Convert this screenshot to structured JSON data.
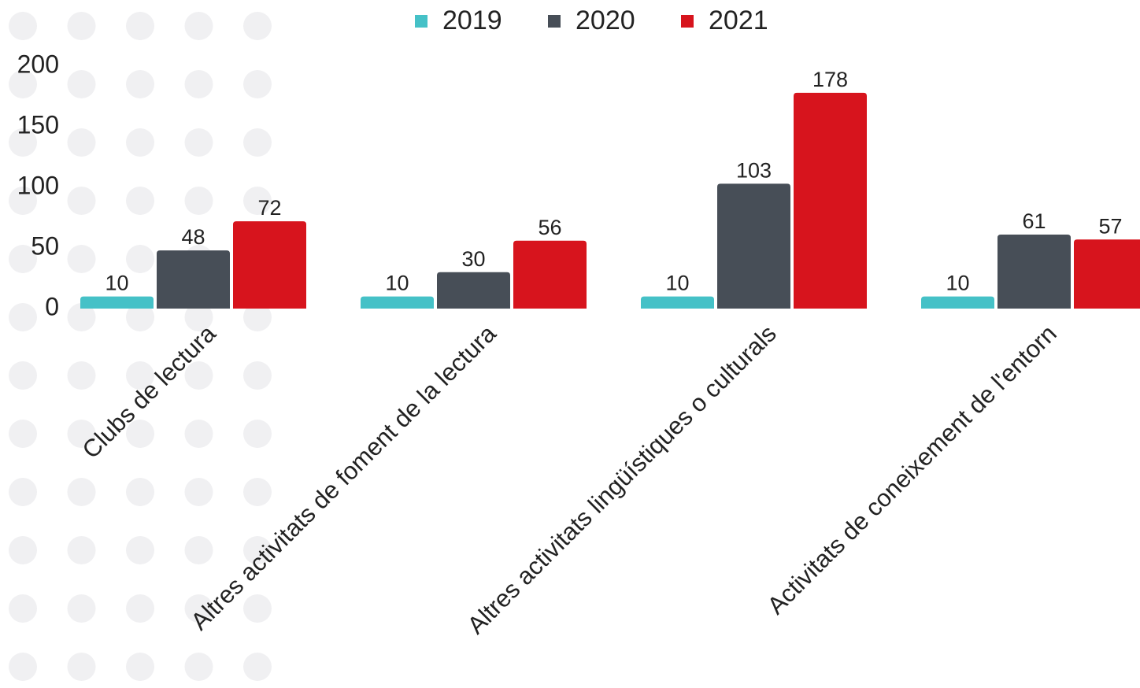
{
  "chart_data": {
    "type": "bar",
    "categories": [
      "Clubs de lectura",
      "Altres activitats de foment de la lectura",
      "Altres activitats lingüístiques o culturals",
      "Activitats de coneixement de l'entorn"
    ],
    "series": [
      {
        "name": "2019",
        "color": "#45c1c7",
        "values": [
          10,
          10,
          10,
          10
        ]
      },
      {
        "name": "2020",
        "color": "#474e57",
        "values": [
          48,
          30,
          103,
          61
        ]
      },
      {
        "name": "2021",
        "color": "#d7141d",
        "values": [
          72,
          56,
          178,
          57
        ]
      }
    ],
    "ylim": [
      0,
      200
    ],
    "yticks": [
      0,
      50,
      100,
      150,
      200
    ],
    "legend": "top"
  }
}
